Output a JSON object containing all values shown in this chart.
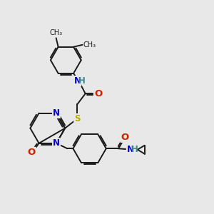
{
  "bg_color": "#e8e8e8",
  "bond_color": "#1a1a1a",
  "bond_width": 1.4,
  "atom_colors": {
    "N": "#0000cc",
    "O": "#cc2200",
    "S": "#bbaa00",
    "H": "#448888",
    "C": "#1a1a1a"
  },
  "font_size": 8.5,
  "fig_width": 3.0,
  "fig_height": 3.0,
  "dpi": 100
}
